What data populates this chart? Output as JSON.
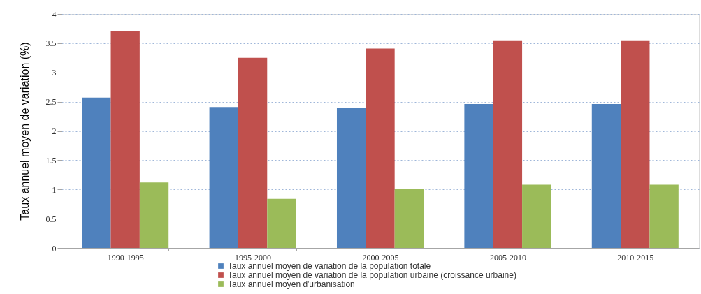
{
  "chart_data": {
    "type": "bar",
    "categories": [
      "1990-1995",
      "1995-2000",
      "2000-2005",
      "2005-2010",
      "2010-2015"
    ],
    "ylabel": "Taux annuel moyen de variation (%)",
    "series": [
      {
        "name": "Taux annuel moyen de variation de la population totale",
        "color": "#4f81bd",
        "values": [
          2.57,
          2.41,
          2.4,
          2.46,
          2.46
        ]
      },
      {
        "name": "Taux annuel moyen de variation de la population urbaine (croissance urbaine)",
        "color": "#c0504d",
        "values": [
          3.71,
          3.25,
          3.41,
          3.55,
          3.55
        ]
      },
      {
        "name": "Taux annuel moyen d'urbanisation",
        "color": "#9bbb59",
        "values": [
          1.12,
          0.84,
          1.01,
          1.08,
          1.08
        ]
      }
    ],
    "ylim": [
      0,
      4
    ],
    "yticks": [
      0,
      0.5,
      1,
      1.5,
      2,
      2.5,
      3,
      3.5,
      4
    ],
    "grid": "y",
    "legend": "bottom"
  }
}
